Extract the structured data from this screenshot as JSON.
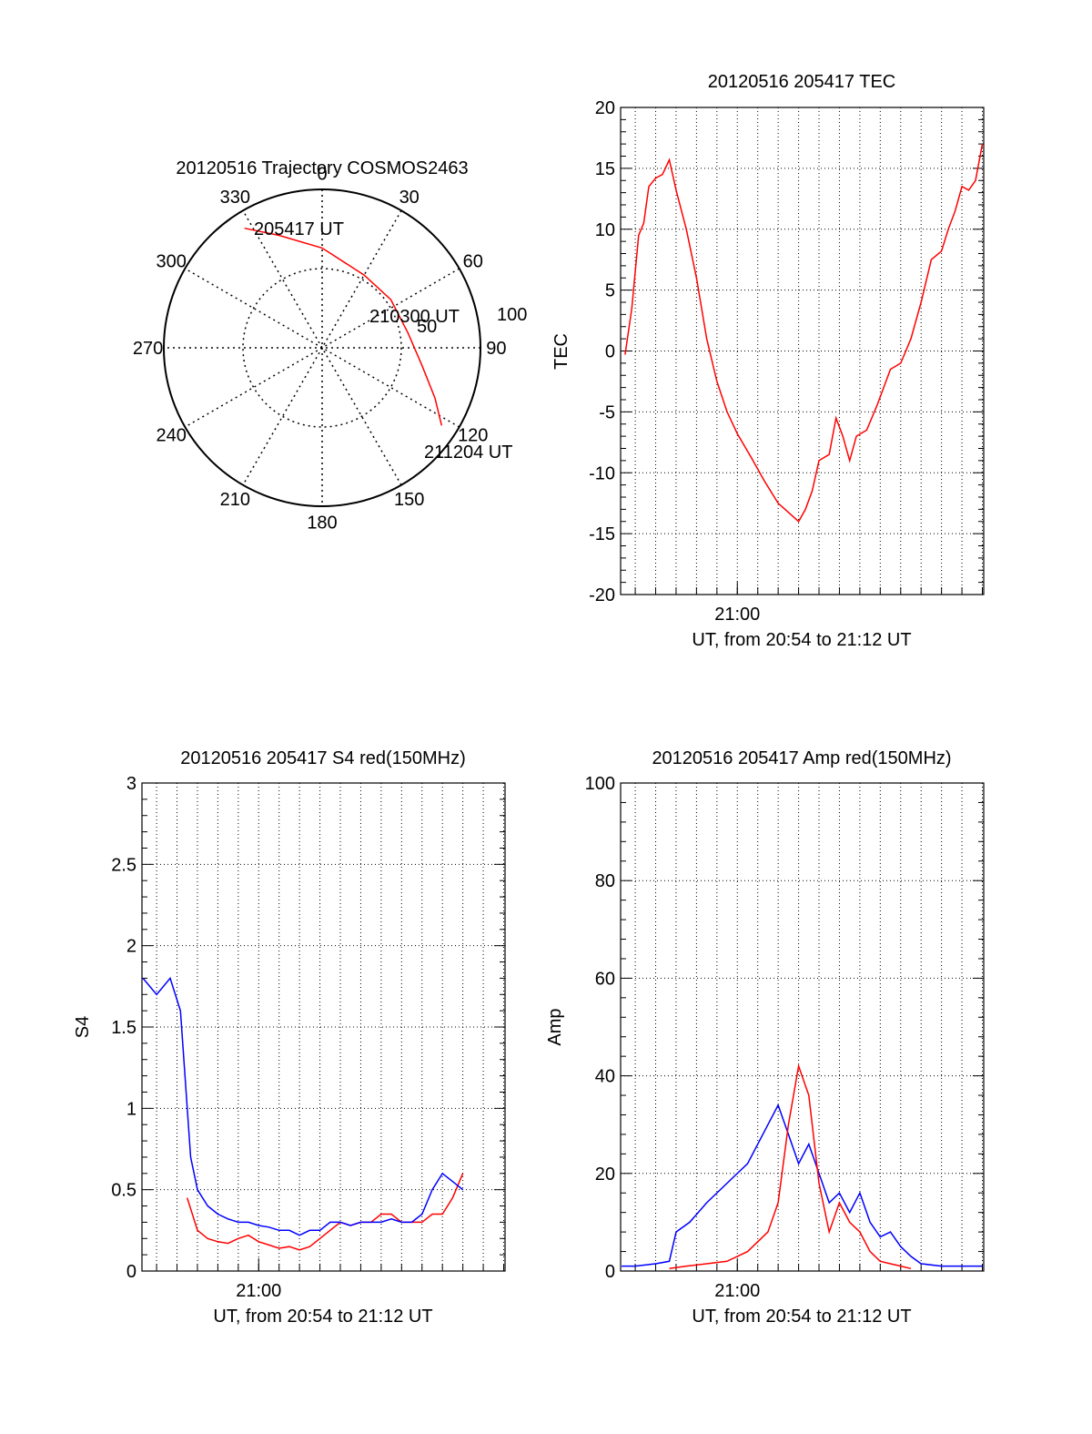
{
  "chart_data": [
    {
      "type": "polar",
      "title": "20120516 Trajectory COSMOS2463",
      "angle_labels": [
        "0",
        "30",
        "60",
        "90",
        "120",
        "150",
        "180",
        "210",
        "240",
        "270",
        "300",
        "330"
      ],
      "radial_labels": [
        "50",
        "100"
      ],
      "rlim": [
        0,
        100
      ],
      "series": [
        {
          "color": "#ff0000",
          "points": [
            {
              "azimuth": 327,
              "r": 90
            },
            {
              "azimuth": 339,
              "r": 76
            },
            {
              "azimuth": 0,
              "r": 63
            },
            {
              "azimuth": 30,
              "r": 53
            },
            {
              "azimuth": 55,
              "r": 53
            },
            {
              "azimuth": 80,
              "r": 55
            },
            {
              "azimuth": 100,
              "r": 64
            },
            {
              "azimuth": 114,
              "r": 78
            },
            {
              "azimuth": 123,
              "r": 90
            }
          ]
        }
      ],
      "annotations": [
        {
          "text": "205417 UT",
          "azimuth": 333,
          "r": 80
        },
        {
          "text": "210300 UT",
          "azimuth": 57,
          "r": 53
        },
        {
          "text": "211204 UT",
          "azimuth": 120,
          "r": 103
        }
      ]
    },
    {
      "type": "line",
      "title": "20120516 205417 TEC",
      "xlabel": "UT, from 20:54 to 21:12 UT",
      "ylabel": "TEC",
      "xlim": [
        "20:54:17",
        "21:12:04"
      ],
      "ylim": [
        -20,
        20
      ],
      "xticks": [
        {
          "value": "21:00",
          "label": "21:00"
        }
      ],
      "yticks": [
        "-20",
        "-15",
        "-10",
        "-5",
        "0",
        "5",
        "10",
        "15",
        "20"
      ],
      "grid": true,
      "series": [
        {
          "color": "#ff0000",
          "x": [
            "20:54:30",
            "20:54:50",
            "20:55:10",
            "20:55:25",
            "20:55:40",
            "20:56:00",
            "20:56:20",
            "20:56:40",
            "20:57:00",
            "20:57:30",
            "20:58:00",
            "20:58:30",
            "20:59:00",
            "20:59:30",
            "21:00:00",
            "21:00:40",
            "21:01:20",
            "21:02:00",
            "21:02:40",
            "21:03:00",
            "21:03:20",
            "21:03:40",
            "21:04:00",
            "21:04:30",
            "21:04:50",
            "21:05:10",
            "21:05:30",
            "21:05:50",
            "21:06:20",
            "21:06:50",
            "21:07:10",
            "21:07:30",
            "21:08:00",
            "21:08:30",
            "21:09:00",
            "21:09:30",
            "21:10:00",
            "21:10:20",
            "21:10:40",
            "21:11:00",
            "21:11:20",
            "21:11:40",
            "21:12:00"
          ],
          "values": [
            -0.3,
            3.5,
            9.5,
            10.5,
            13.5,
            14.2,
            14.5,
            15.7,
            13.2,
            10.0,
            6.0,
            1.0,
            -2.5,
            -5.0,
            -6.8,
            -8.7,
            -10.7,
            -12.5,
            -13.5,
            -14.0,
            -13.0,
            -11.5,
            -9.0,
            -8.5,
            -5.5,
            -7.0,
            -9.0,
            -7.0,
            -6.5,
            -4.5,
            -3.0,
            -1.5,
            -1.0,
            1.0,
            4.0,
            7.5,
            8.2,
            10.0,
            11.5,
            13.5,
            13.2,
            14.0,
            17.0
          ]
        }
      ]
    },
    {
      "type": "line",
      "title": "20120516 205417 S4 red(150MHz)",
      "xlabel": "UT, from 20:54 to 21:12 UT",
      "ylabel": "S4",
      "xlim": [
        "20:54:17",
        "21:12:04"
      ],
      "ylim": [
        0,
        3
      ],
      "xticks": [
        {
          "value": "21:00",
          "label": "21:00"
        }
      ],
      "yticks": [
        "0",
        "0.5",
        "1",
        "1.5",
        "2",
        "2.5",
        "3"
      ],
      "grid": true,
      "series": [
        {
          "color": "#ff0000",
          "x": [
            "20:56:30",
            "20:57:00",
            "20:57:30",
            "20:58:00",
            "20:58:30",
            "20:59:00",
            "20:59:30",
            "21:00:00",
            "21:00:30",
            "21:01:00",
            "21:01:30",
            "21:02:00",
            "21:02:30",
            "21:03:00",
            "21:03:30",
            "21:04:00",
            "21:04:30",
            "21:05:00",
            "21:05:30",
            "21:06:00",
            "21:06:30",
            "21:07:00",
            "21:07:30",
            "21:08:00",
            "21:08:30",
            "21:09:00",
            "21:09:30",
            "21:10:00"
          ],
          "values": [
            0.45,
            0.25,
            0.2,
            0.18,
            0.17,
            0.2,
            0.22,
            0.18,
            0.16,
            0.14,
            0.15,
            0.13,
            0.15,
            0.2,
            0.25,
            0.3,
            0.28,
            0.3,
            0.3,
            0.35,
            0.35,
            0.3,
            0.3,
            0.3,
            0.35,
            0.35,
            0.45,
            0.6
          ]
        },
        {
          "color": "#0000ff",
          "x": [
            "20:54:20",
            "20:55:00",
            "20:55:40",
            "20:56:10",
            "20:56:40",
            "20:57:00",
            "20:57:30",
            "20:58:00",
            "20:58:30",
            "20:59:00",
            "20:59:30",
            "21:00:00",
            "21:00:30",
            "21:01:00",
            "21:01:30",
            "21:02:00",
            "21:02:30",
            "21:03:00",
            "21:03:30",
            "21:04:00",
            "21:04:30",
            "21:05:00",
            "21:05:30",
            "21:06:00",
            "21:06:30",
            "21:07:00",
            "21:07:30",
            "21:08:00",
            "21:08:30",
            "21:09:00",
            "21:09:30",
            "21:10:00"
          ],
          "values": [
            1.8,
            1.7,
            1.8,
            1.6,
            0.7,
            0.5,
            0.4,
            0.35,
            0.32,
            0.3,
            0.3,
            0.28,
            0.27,
            0.25,
            0.25,
            0.22,
            0.25,
            0.25,
            0.3,
            0.3,
            0.28,
            0.3,
            0.3,
            0.3,
            0.32,
            0.3,
            0.3,
            0.35,
            0.5,
            0.6,
            0.55,
            0.5
          ]
        }
      ]
    },
    {
      "type": "line",
      "title": "20120516 205417 Amp red(150MHz)",
      "xlabel": "UT, from 20:54 to 21:12 UT",
      "ylabel": "Amp",
      "xlim": [
        "20:54:17",
        "21:12:04"
      ],
      "ylim": [
        0,
        100
      ],
      "xticks": [
        {
          "value": "21:00",
          "label": "21:00"
        }
      ],
      "yticks": [
        "0",
        "20",
        "40",
        "60",
        "80",
        "100"
      ],
      "grid": true,
      "series": [
        {
          "color": "#0000ff",
          "x": [
            "20:54:20",
            "20:55:00",
            "20:56:00",
            "20:56:40",
            "20:57:00",
            "20:57:40",
            "20:58:30",
            "20:59:30",
            "21:00:30",
            "21:01:30",
            "21:02:00",
            "21:02:30",
            "21:03:00",
            "21:03:30",
            "21:04:00",
            "21:04:30",
            "21:05:00",
            "21:05:30",
            "21:06:00",
            "21:06:30",
            "21:07:00",
            "21:07:30",
            "21:08:00",
            "21:08:30",
            "21:09:00",
            "21:10:00",
            "21:11:00",
            "21:12:00"
          ],
          "values": [
            1,
            1,
            1.5,
            2,
            8,
            10,
            14,
            18,
            22,
            30,
            34,
            28,
            22,
            26,
            20,
            14,
            16,
            12,
            16,
            10,
            7,
            8,
            5,
            3,
            1.5,
            1,
            1,
            1
          ]
        },
        {
          "color": "#ff0000",
          "x": [
            "20:56:40",
            "20:57:30",
            "20:58:30",
            "20:59:30",
            "21:00:30",
            "21:01:30",
            "21:02:00",
            "21:02:30",
            "21:03:00",
            "21:03:30",
            "21:04:00",
            "21:04:30",
            "21:05:00",
            "21:05:30",
            "21:06:00",
            "21:06:30",
            "21:07:00",
            "21:07:30",
            "21:08:00",
            "21:08:30"
          ],
          "values": [
            0.5,
            1,
            1.5,
            2,
            4,
            8,
            14,
            30,
            42,
            36,
            18,
            8,
            14,
            10,
            8,
            4,
            2,
            1.5,
            1,
            0.5
          ]
        }
      ]
    }
  ]
}
